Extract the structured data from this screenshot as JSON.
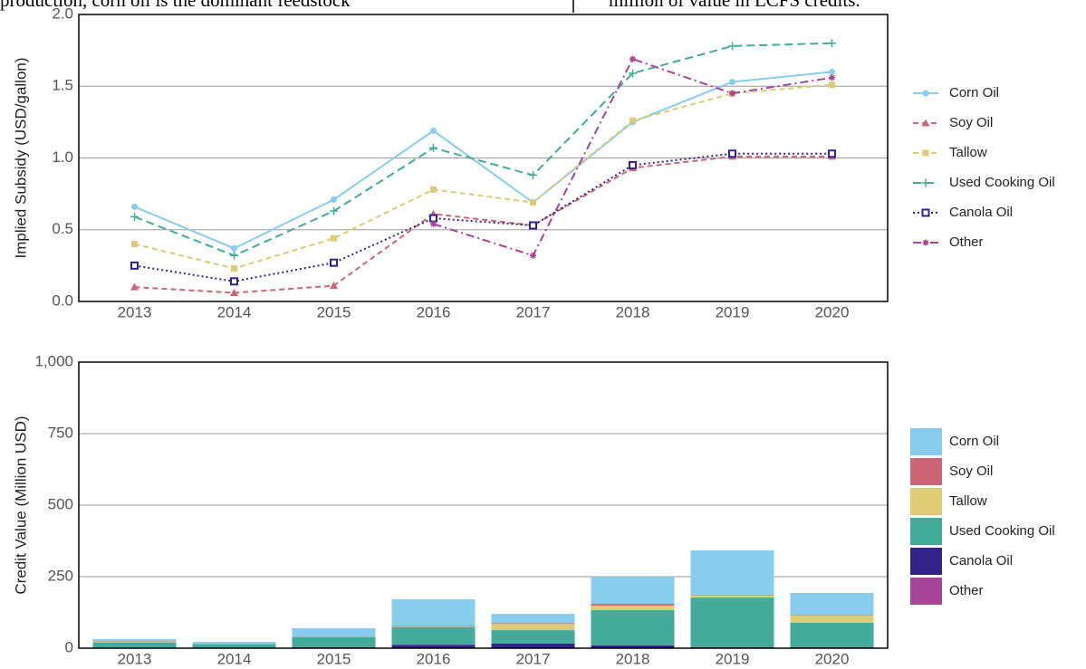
{
  "snippets": [
    "production, corn oil is the dominant feedstock",
    "million of value in LCFS credits."
  ],
  "chart_data": [
    {
      "type": "line",
      "ylabel": "Implied Subsidy (USD/gallon)",
      "categories": [
        "2013",
        "2014",
        "2015",
        "2016",
        "2017",
        "2018",
        "2019",
        "2020"
      ],
      "ylim": [
        0,
        2.0
      ],
      "yticks": [
        {
          "value": 0,
          "label": "0.0"
        },
        0.5,
        {
          "value": 1.0,
          "label": "1.0"
        },
        1.5,
        {
          "value": 2.0,
          "label": "2.0"
        }
      ],
      "grid": true,
      "legend": "right",
      "series": [
        {
          "name": "Corn Oil",
          "color": "#88ccee",
          "linestyle": "solid",
          "marker": "circle",
          "values": [
            0.66,
            0.37,
            0.71,
            1.19,
            0.69,
            1.25,
            1.53,
            1.6
          ]
        },
        {
          "name": "Soy Oil",
          "color": "#cc6677",
          "linestyle": "dashed",
          "marker": "triangle",
          "values": [
            0.1,
            0.06,
            0.11,
            0.61,
            0.53,
            0.93,
            1.01,
            1.01
          ]
        },
        {
          "name": "Tallow",
          "color": "#ddcc77",
          "linestyle": "dashed",
          "marker": "square",
          "values": [
            0.4,
            0.23,
            0.44,
            0.78,
            0.69,
            1.26,
            1.45,
            1.51
          ]
        },
        {
          "name": "Used Cooking Oil",
          "color": "#44aa99",
          "linestyle": "longdash",
          "marker": "plus",
          "values": [
            0.59,
            0.32,
            0.63,
            1.07,
            0.88,
            1.59,
            1.78,
            1.8
          ]
        },
        {
          "name": "Canola Oil",
          "color": "#332288",
          "linestyle": "dotted",
          "marker": "boxed",
          "values": [
            0.25,
            0.14,
            0.27,
            0.58,
            0.53,
            0.95,
            1.03,
            1.03
          ]
        },
        {
          "name": "Other",
          "color": "#aa4499",
          "linestyle": "dashdot",
          "marker": "star",
          "values": [
            null,
            null,
            null,
            0.54,
            0.32,
            1.69,
            1.45,
            1.56
          ]
        }
      ]
    },
    {
      "type": "bar",
      "stacked": true,
      "ylabel": "Credit Value (Million USD)",
      "categories": [
        "2013",
        "2014",
        "2015",
        "2016",
        "2017",
        "2018",
        "2019",
        "2020"
      ],
      "ylim": [
        0,
        1000
      ],
      "yticks": [
        0,
        250,
        500,
        750,
        {
          "value": 1000,
          "label": "1,000"
        }
      ],
      "grid": true,
      "legend": "right",
      "series": [
        {
          "name": "Corn Oil",
          "color": "#88ccee",
          "values": [
            7,
            6,
            29,
            93,
            33,
            95,
            155,
            77
          ]
        },
        {
          "name": "Soy Oil",
          "color": "#cc6677",
          "values": [
            2,
            1,
            1,
            2,
            2,
            6,
            2,
            2
          ]
        },
        {
          "name": "Tallow",
          "color": "#ddcc77",
          "values": [
            3,
            1,
            1,
            2,
            22,
            16,
            8,
            25
          ]
        },
        {
          "name": "Used Cooking Oil",
          "color": "#44aa99",
          "values": [
            18,
            12,
            36,
            62,
            47,
            123,
            174,
            86
          ]
        },
        {
          "name": "Canola Oil",
          "color": "#332288",
          "values": [
            2,
            2,
            3,
            12,
            16,
            10,
            3,
            3
          ]
        },
        {
          "name": "Other",
          "color": "#aa4499",
          "values": [
            0,
            0,
            0,
            0,
            0,
            0,
            0,
            0
          ]
        }
      ]
    }
  ]
}
